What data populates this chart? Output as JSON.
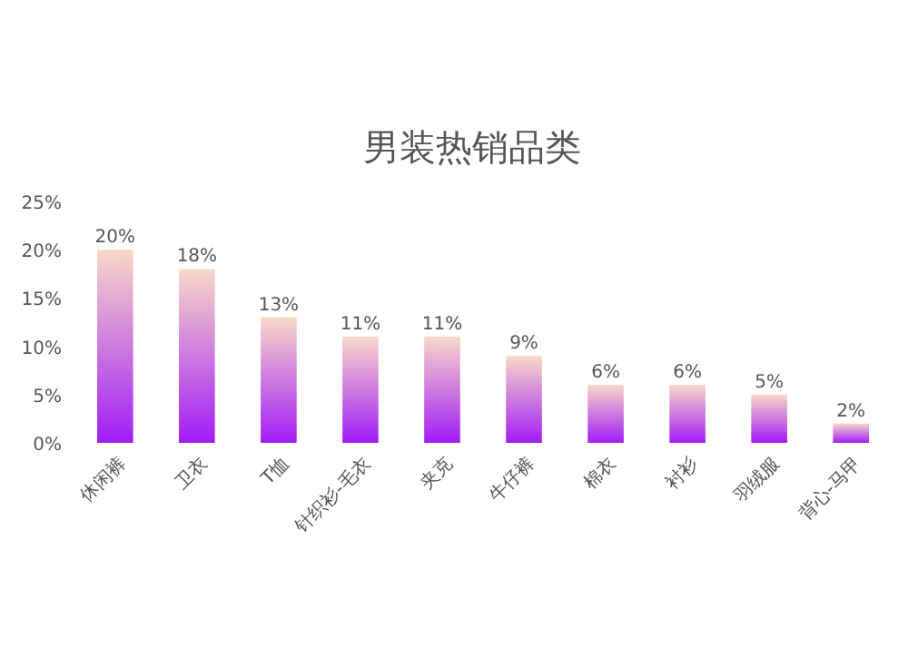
{
  "chart_data": {
    "type": "bar",
    "title": "男装热销品类",
    "categories": [
      "休闲裤",
      "卫衣",
      "T恤",
      "针织衫-毛衣",
      "夹克",
      "牛仔裤",
      "棉衣",
      "衬衫",
      "羽绒服",
      "背心-马甲"
    ],
    "values": [
      20,
      18,
      13,
      11,
      11,
      9,
      6,
      6,
      5,
      2
    ],
    "color": "#a21cf7",
    "ylim": [
      0,
      25
    ],
    "yticks": [
      {
        "value": 0,
        "label": "0%"
      },
      {
        "value": 5,
        "label": "5%"
      },
      {
        "value": 10,
        "label": "10%"
      },
      {
        "value": 15,
        "label": "15%"
      },
      {
        "value": 20,
        "label": "20%"
      },
      {
        "value": 25,
        "label": "25%"
      }
    ],
    "value_labels": [
      "20%",
      "18%",
      "13%",
      "11%",
      "11%",
      "9%",
      "6%",
      "6%",
      "5%",
      "2%"
    ]
  }
}
